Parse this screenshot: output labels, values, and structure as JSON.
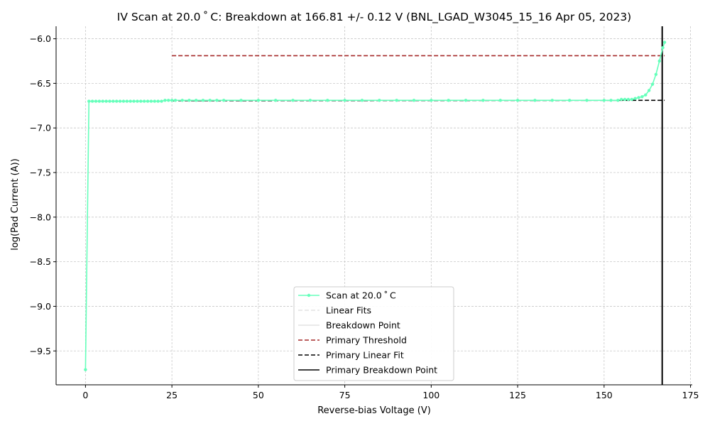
{
  "chart_data": {
    "type": "line",
    "title": "IV Scan at 20.0$^\\circ$C: Breakdown at 166.81 +/- 0.12 V (BNL_LGAD_W3045_15_16 Apr 05, 2023)",
    "title_display": "IV Scan at 20.0 ˚ C: Breakdown at 166.81 +/- 0.12 V (BNL_LGAD_W3045_15_16 Apr 05, 2023)",
    "xlabel": "Reverse-bias Voltage (V)",
    "ylabel": "log(Pad Current (A))",
    "xlim": [
      -8.5,
      175.5
    ],
    "ylim": [
      -9.88,
      -5.86
    ],
    "x_ticks": [
      0,
      25,
      50,
      75,
      100,
      125,
      150,
      175
    ],
    "y_ticks": [
      -9.5,
      -9.0,
      -8.5,
      -8.0,
      -7.5,
      -7.0,
      -6.5,
      -6.0
    ],
    "x_tick_labels": [
      "0",
      "25",
      "50",
      "75",
      "100",
      "125",
      "150",
      "175"
    ],
    "y_tick_labels": [
      "−9.5",
      "−9.0",
      "−8.5",
      "−8.0",
      "−7.5",
      "−7.0",
      "−6.5",
      "−6.0"
    ],
    "grid": true,
    "legend_position": "lower-center",
    "series": [
      {
        "name": "Scan at 20.0 ˚ C",
        "color": "#66ffbb",
        "marker": "circle",
        "x": [
          0,
          1,
          2,
          3,
          4,
          5,
          6,
          7,
          8,
          9,
          10,
          11,
          12,
          13,
          14,
          15,
          16,
          17,
          18,
          19,
          20,
          21,
          22,
          23,
          24,
          25,
          26,
          28,
          30,
          32,
          34,
          36,
          38,
          40,
          45,
          50,
          55,
          60,
          65,
          70,
          75,
          80,
          85,
          90,
          95,
          100,
          105,
          110,
          115,
          120,
          125,
          130,
          135,
          140,
          145,
          150,
          152,
          154,
          155,
          156,
          157,
          158,
          159,
          160,
          161,
          162,
          163,
          164,
          165,
          166,
          167,
          167.5
        ],
        "y": [
          -9.71,
          -6.7,
          -6.7,
          -6.7,
          -6.7,
          -6.7,
          -6.7,
          -6.7,
          -6.7,
          -6.7,
          -6.7,
          -6.7,
          -6.7,
          -6.7,
          -6.7,
          -6.7,
          -6.7,
          -6.7,
          -6.7,
          -6.7,
          -6.7,
          -6.7,
          -6.7,
          -6.69,
          -6.69,
          -6.69,
          -6.69,
          -6.69,
          -6.69,
          -6.69,
          -6.69,
          -6.69,
          -6.69,
          -6.69,
          -6.69,
          -6.69,
          -6.69,
          -6.69,
          -6.69,
          -6.69,
          -6.69,
          -6.69,
          -6.69,
          -6.69,
          -6.69,
          -6.69,
          -6.69,
          -6.69,
          -6.69,
          -6.69,
          -6.69,
          -6.69,
          -6.69,
          -6.69,
          -6.69,
          -6.69,
          -6.69,
          -6.69,
          -6.68,
          -6.68,
          -6.68,
          -6.68,
          -6.67,
          -6.66,
          -6.65,
          -6.63,
          -6.58,
          -6.51,
          -6.4,
          -6.25,
          -6.1,
          -6.04
        ]
      }
    ],
    "legend_entries": [
      {
        "label": "Scan at 20.0 ˚ C",
        "style": "line-marker",
        "color": "#66ffbb"
      },
      {
        "label": "Linear Fits",
        "style": "dashed",
        "color": "#e4e4e4"
      },
      {
        "label": "Breakdown Point",
        "style": "solid",
        "color": "#e4e4e4"
      },
      {
        "label": "Primary Threshold",
        "style": "dashed",
        "color": "#a52a2a"
      },
      {
        "label": "Primary Linear Fit",
        "style": "dashed",
        "color": "#000000"
      },
      {
        "label": "Primary Breakdown Point",
        "style": "solid",
        "color": "#000000"
      }
    ],
    "primary_threshold": {
      "x": [
        25,
        167.5
      ],
      "y": -6.19,
      "color": "#a52a2a"
    },
    "primary_linear_fit": {
      "x": [
        25,
        167.5
      ],
      "y": [
        -6.695,
        -6.69
      ],
      "color": "#000000"
    },
    "primary_breakdown_point": {
      "x": 166.81,
      "uncertainty": 0.12,
      "color": "#000000"
    }
  }
}
